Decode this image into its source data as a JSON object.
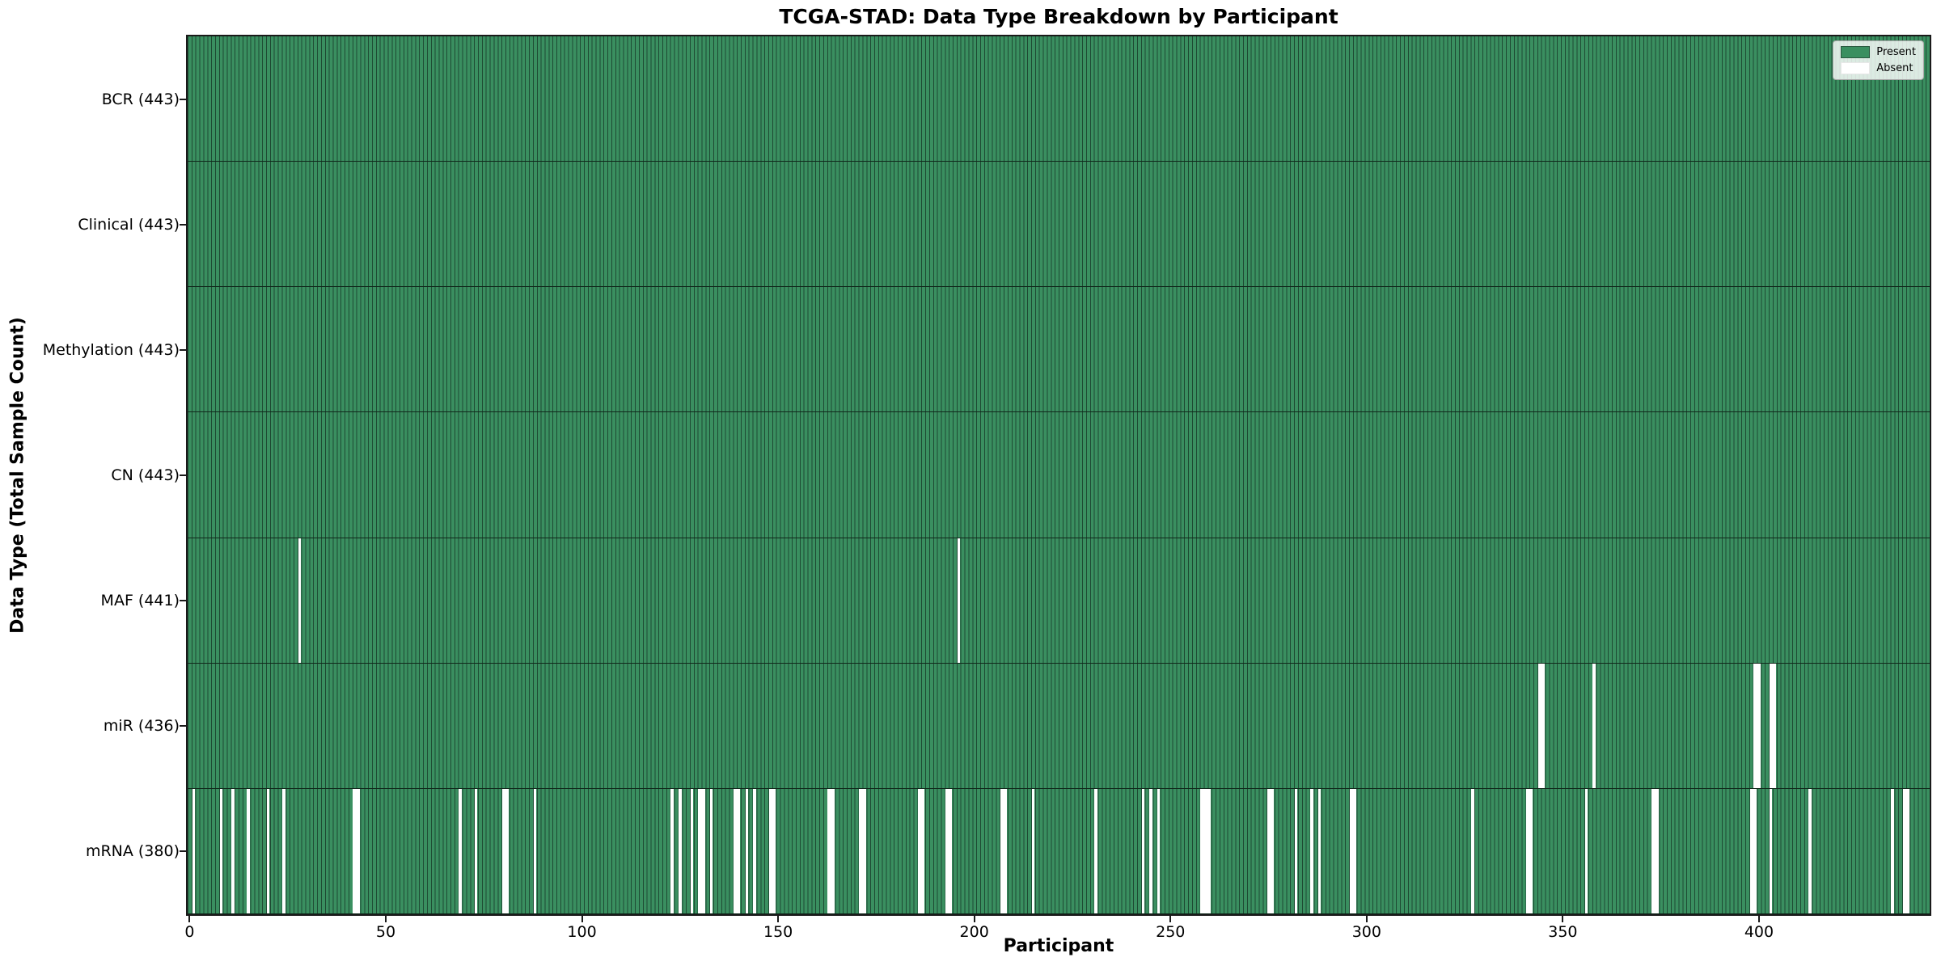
{
  "title": "TCGA-STAD: Data Type Breakdown by Participant",
  "x_axis_title": "Participant",
  "y_axis_title": "Data Type (Total Sample Count)",
  "legend": {
    "present_label": "Present",
    "absent_label": "Absent"
  },
  "colors": {
    "present": "#3a8f60",
    "cell_edge": "#1e4a33",
    "absent": "#ffffff",
    "spine": "#1a1a1a"
  },
  "chart_data": {
    "type": "heatmap",
    "title": "TCGA-STAD: Data Type Breakdown by Participant",
    "xlabel": "Participant",
    "ylabel": "Data Type (Total Sample Count)",
    "x_ticks": [
      0,
      50,
      100,
      150,
      200,
      250,
      300,
      350,
      400
    ],
    "n_participants": 443,
    "xlim": [
      -0.5,
      443.5
    ],
    "grid": false,
    "legend_position": "upper right",
    "value_legend": [
      "Present",
      "Absent"
    ],
    "rows": [
      {
        "name": "BCR",
        "label": "BCR (443)",
        "total": 443,
        "absent": []
      },
      {
        "name": "Clinical",
        "label": "Clinical (443)",
        "total": 443,
        "absent": []
      },
      {
        "name": "Methylation",
        "label": "Methylation (443)",
        "total": 443,
        "absent": []
      },
      {
        "name": "CN",
        "label": "CN (443)",
        "total": 443,
        "absent": []
      },
      {
        "name": "MAF",
        "label": "MAF (441)",
        "total": 441,
        "absent": [
          28,
          196
        ]
      },
      {
        "name": "miR",
        "label": "miR (436)",
        "total": 436,
        "absent": [
          344,
          345,
          358,
          399,
          400,
          403,
          404
        ]
      },
      {
        "name": "mRNA",
        "label": "mRNA (380)",
        "total": 380,
        "absent": [
          1,
          8,
          11,
          15,
          20,
          24,
          42,
          43,
          69,
          73,
          80,
          81,
          88,
          123,
          125,
          128,
          130,
          131,
          133,
          139,
          140,
          142,
          144,
          148,
          149,
          163,
          164,
          171,
          172,
          186,
          187,
          193,
          194,
          207,
          208,
          215,
          231,
          243,
          245,
          247,
          258,
          259,
          260,
          275,
          276,
          282,
          286,
          288,
          296,
          297,
          327,
          341,
          342,
          356,
          373,
          374,
          398,
          399,
          403,
          413,
          434,
          437,
          438
        ]
      }
    ]
  }
}
